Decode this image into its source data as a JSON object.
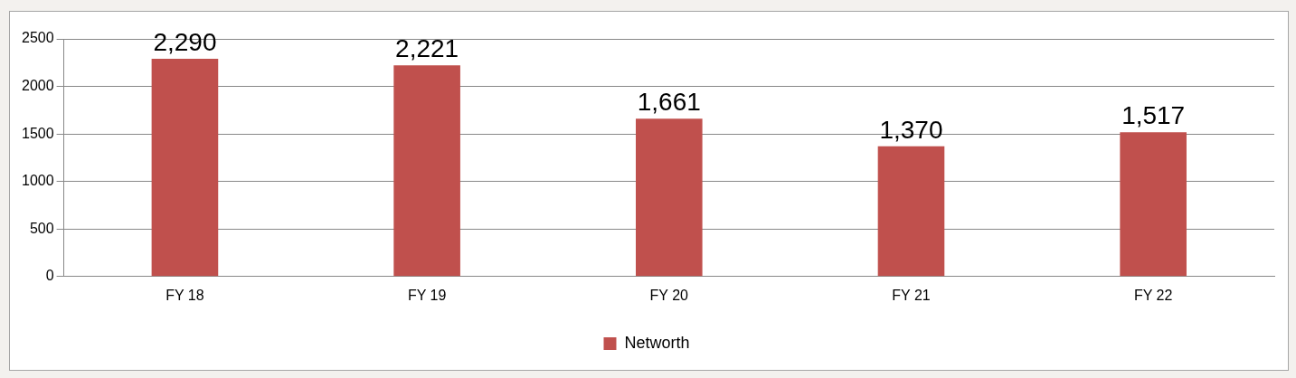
{
  "chart_data": {
    "type": "bar",
    "categories": [
      "FY 18",
      "FY 19",
      "FY 20",
      "FY 21",
      "FY 22"
    ],
    "series": [
      {
        "name": "Networth",
        "color": "#c0504d",
        "values": [
          2290,
          2221,
          1661,
          1370,
          1517
        ],
        "value_labels": [
          "2,290",
          "2,221",
          "1,661",
          "1,370",
          "1,517"
        ]
      }
    ],
    "ylim": [
      0,
      2500
    ],
    "yticks": [
      0,
      500,
      1000,
      1500,
      2000,
      2500
    ],
    "grid": "y",
    "legend": "bottom"
  }
}
